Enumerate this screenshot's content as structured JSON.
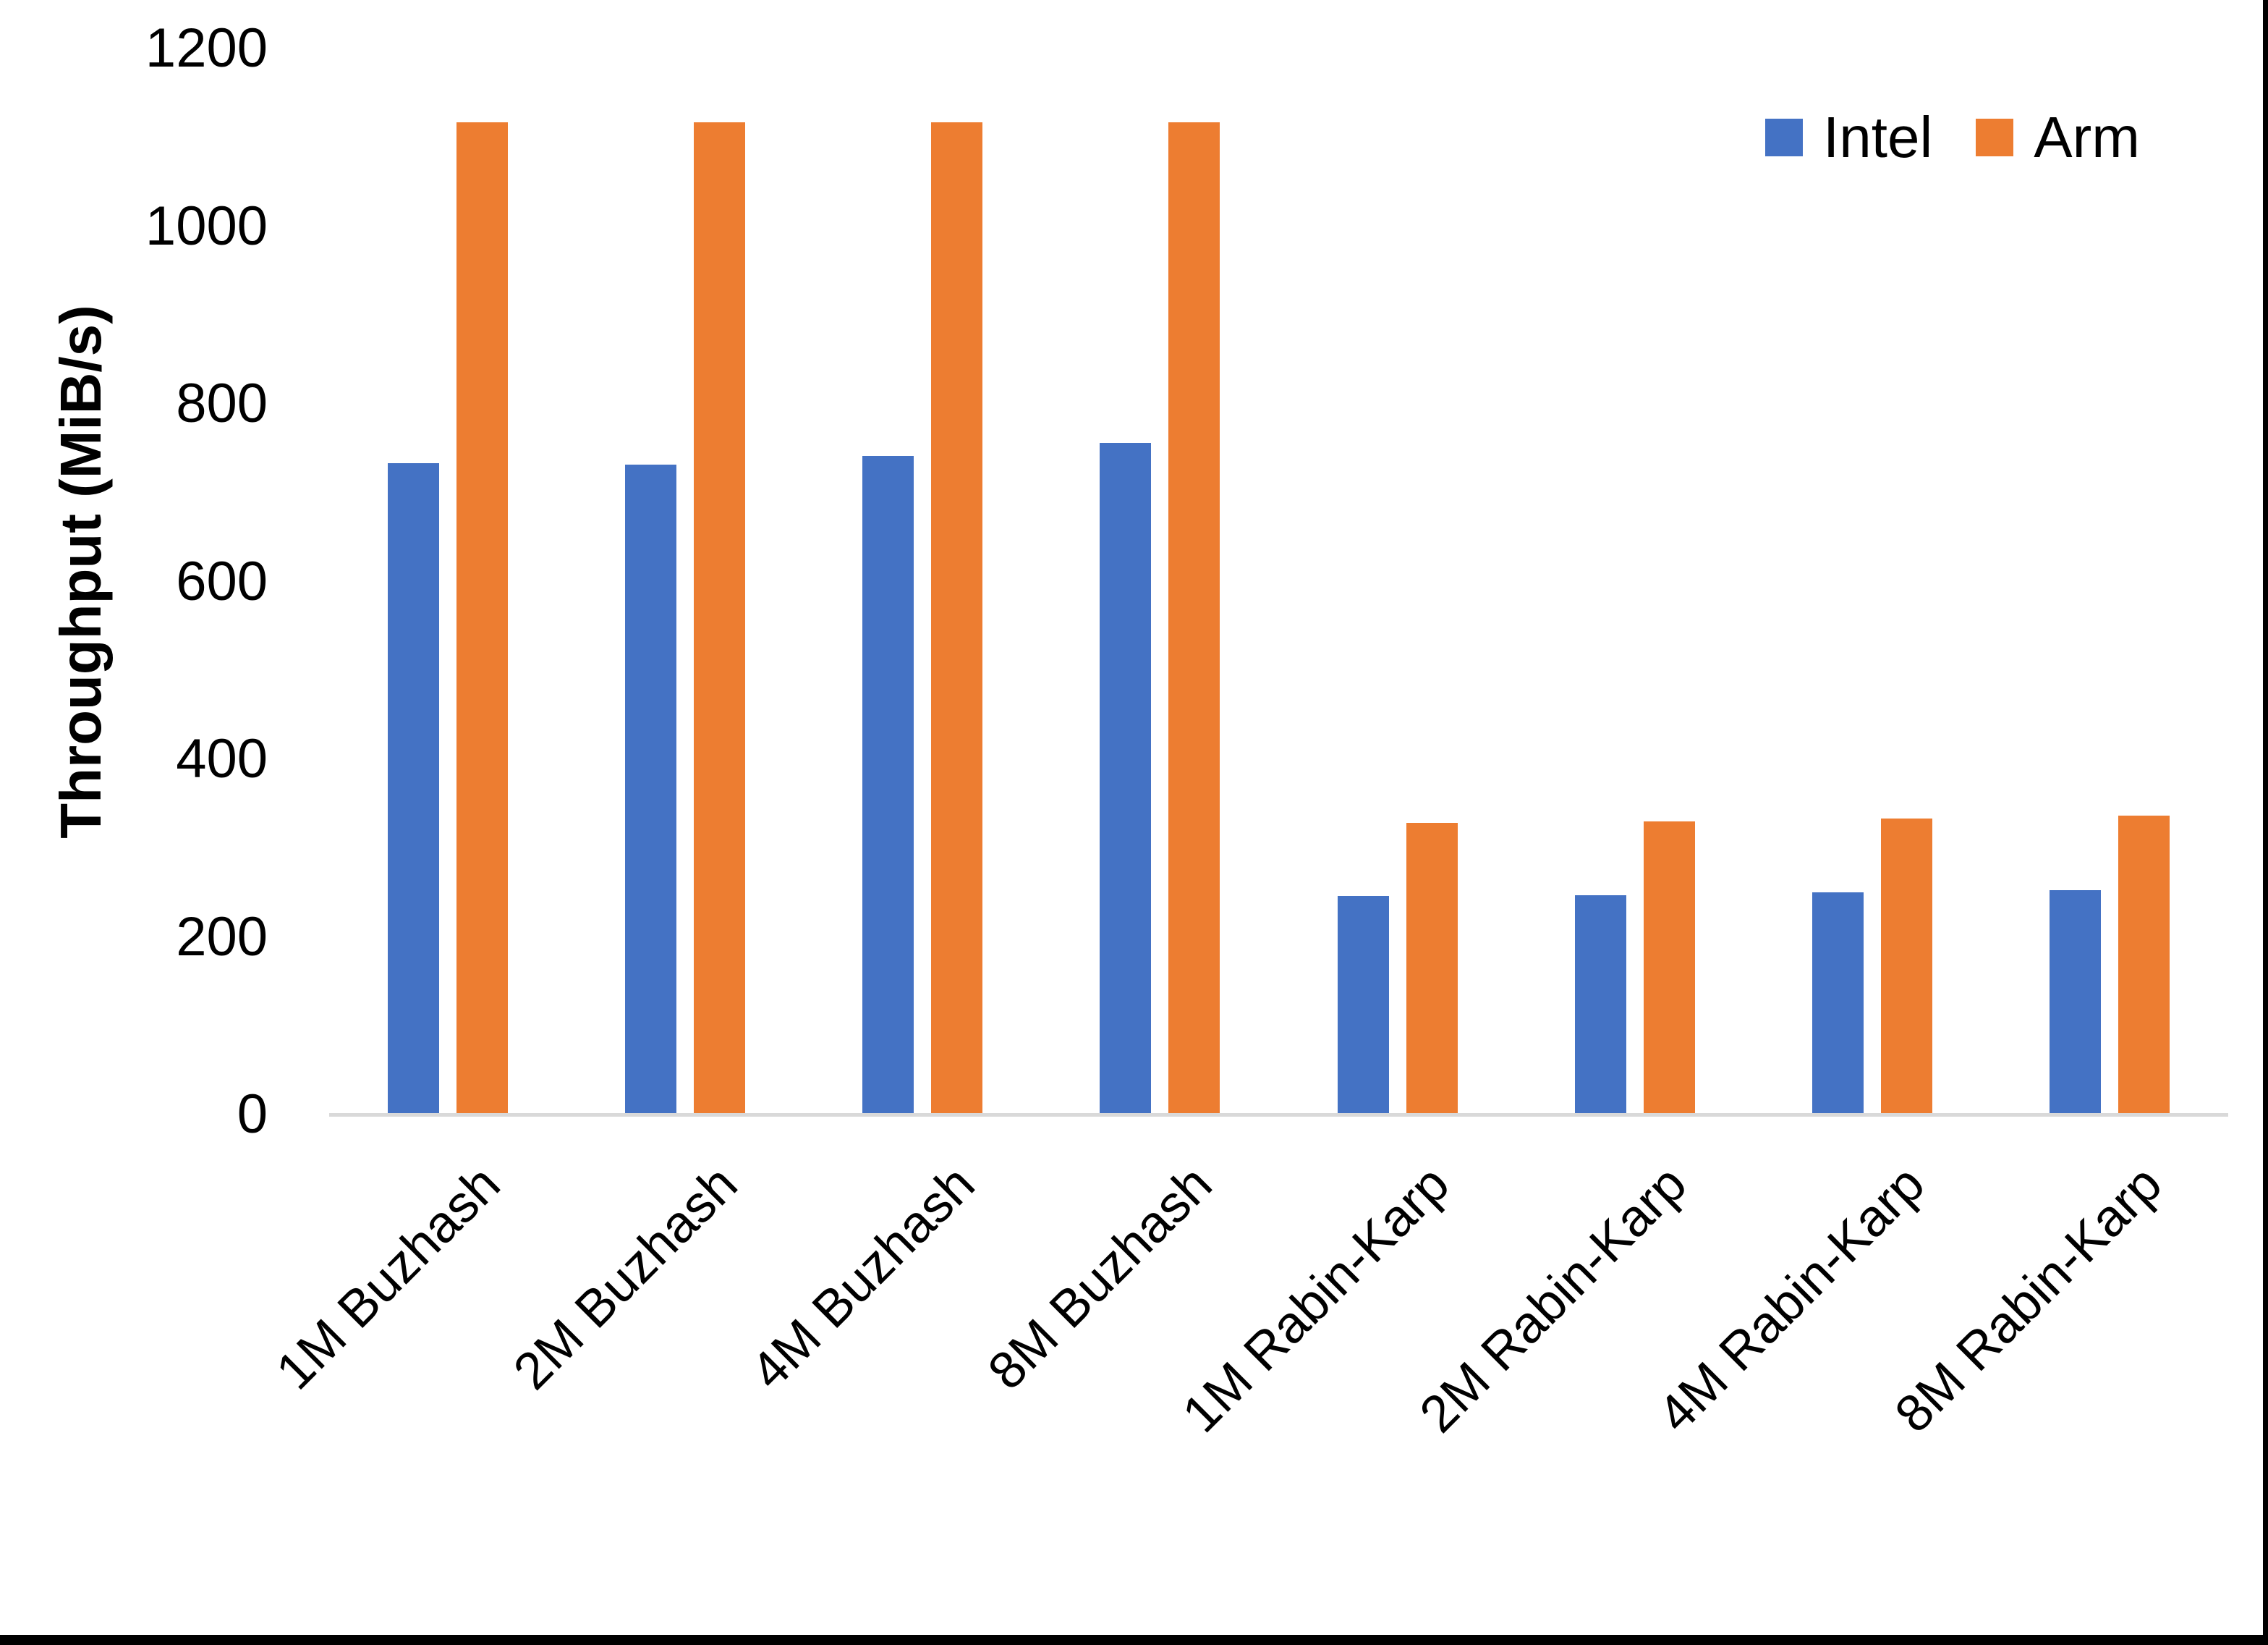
{
  "page": {
    "background": "#ffffff",
    "border_color": "#000000"
  },
  "colors": {
    "intel": "#4472C4",
    "arm": "#ED7D31",
    "axis_line": "#D9D9D9",
    "text": "#000000"
  },
  "legend": {
    "items": [
      {
        "label": "Intel",
        "color": "#4472C4"
      },
      {
        "label": "Arm",
        "color": "#ED7D31"
      }
    ]
  },
  "y_axis": {
    "title": "Throughput (MiB/s)",
    "ticks": [
      "0",
      "200",
      "400",
      "600",
      "800",
      "1000",
      "1200"
    ],
    "tick_values": [
      0,
      200,
      400,
      600,
      800,
      1000,
      1200
    ]
  },
  "chart_data": {
    "type": "bar",
    "title": "",
    "categories": [
      "1M Buzhash",
      "2M Buzhash",
      "4M Buzhash",
      "8M Buzhash",
      "1M Rabin-Karp",
      "2M Rabin-Karp",
      "4M Rabin-Karp",
      "8M Rabin-Karp"
    ],
    "series": [
      {
        "name": "Intel",
        "color": "#4472C4",
        "values": [
          734,
          732,
          742,
          757,
          247,
          248,
          251,
          253
        ]
      },
      {
        "name": "Arm",
        "color": "#ED7D31",
        "values": [
          1118,
          1118,
          1118,
          1118,
          329,
          331,
          334,
          337
        ]
      }
    ],
    "xlabel": "",
    "ylabel": "Throughput (MiB/s)",
    "ylim": [
      0,
      1200
    ],
    "grid": false,
    "legend_position": "top-right"
  }
}
